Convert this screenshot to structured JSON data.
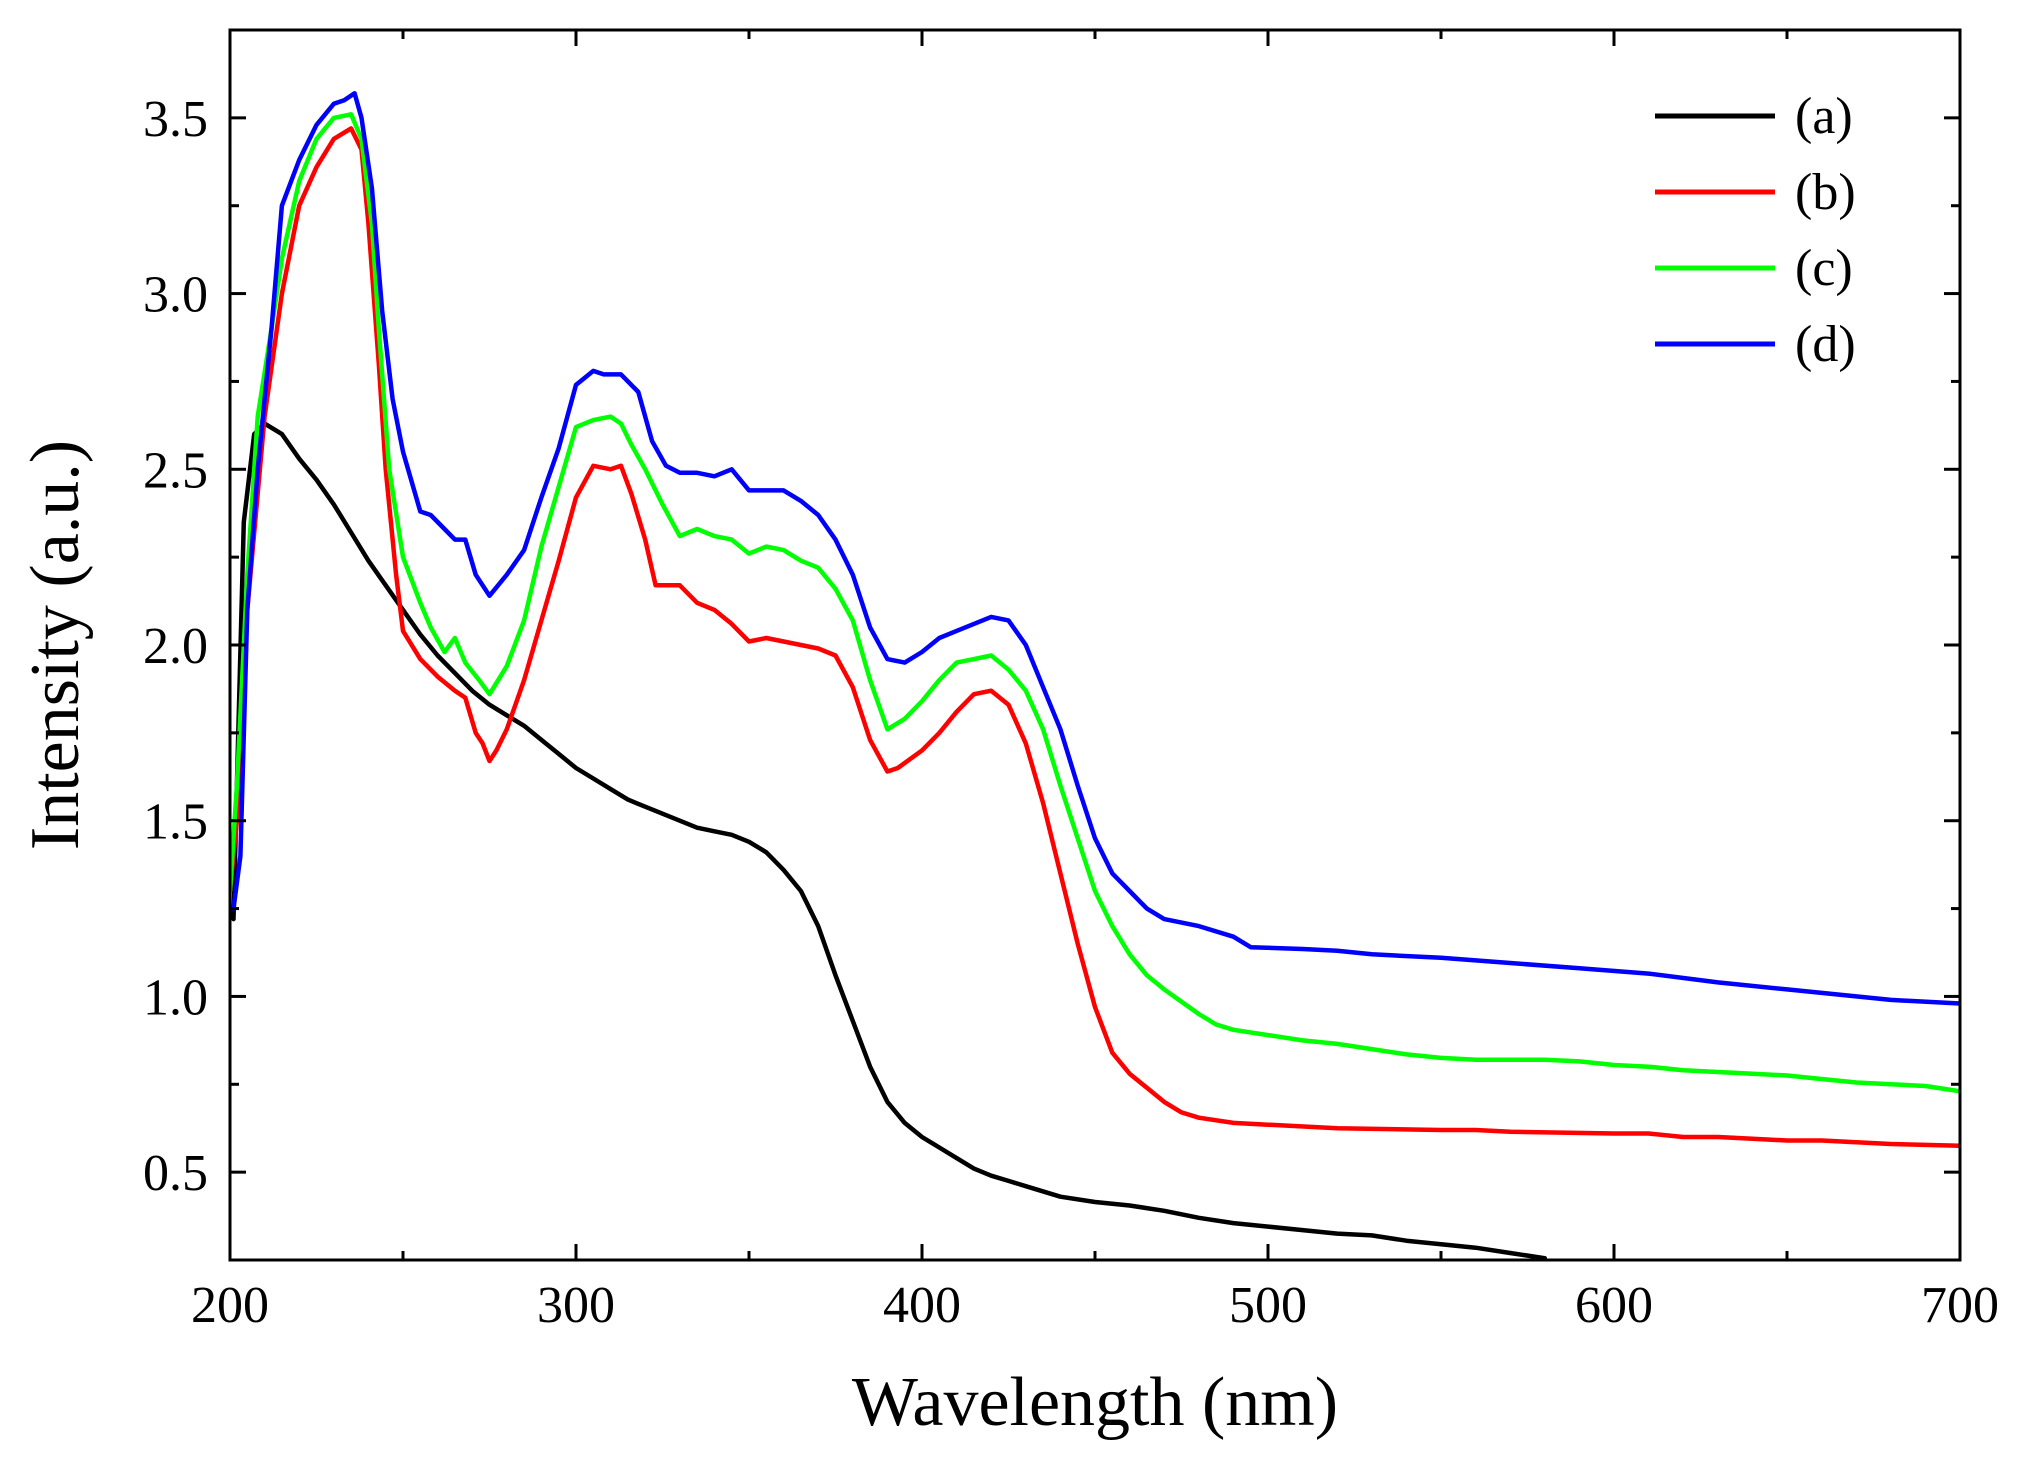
{
  "chart_data": {
    "type": "line",
    "xlabel": "Wavelength (nm)",
    "ylabel": "Intensity (a.u.)",
    "xlim": [
      200,
      700
    ],
    "ylim": [
      0.25,
      3.75
    ],
    "x_ticks": [
      200,
      300,
      400,
      500,
      600,
      700
    ],
    "x_tick_labels": [
      "200",
      "300",
      "400",
      "500",
      "600",
      "700"
    ],
    "y_ticks": [
      0.5,
      1.0,
      1.5,
      2.0,
      2.5,
      3.0,
      3.5
    ],
    "y_tick_labels": [
      "0.5",
      "1.0",
      "1.5",
      "2.0",
      "2.5",
      "3.0",
      "3.5"
    ],
    "legend_position": "top-right",
    "series": [
      {
        "name": "(a)",
        "color": "#000000",
        "points": [
          [
            200,
            1.25
          ],
          [
            201,
            1.22
          ],
          [
            202,
            1.6
          ],
          [
            204,
            2.35
          ],
          [
            207,
            2.6
          ],
          [
            210,
            2.63
          ],
          [
            215,
            2.6
          ],
          [
            220,
            2.53
          ],
          [
            225,
            2.47
          ],
          [
            230,
            2.4
          ],
          [
            235,
            2.32
          ],
          [
            240,
            2.24
          ],
          [
            245,
            2.17
          ],
          [
            250,
            2.1
          ],
          [
            255,
            2.03
          ],
          [
            260,
            1.97
          ],
          [
            265,
            1.92
          ],
          [
            270,
            1.87
          ],
          [
            275,
            1.83
          ],
          [
            280,
            1.8
          ],
          [
            285,
            1.77
          ],
          [
            290,
            1.73
          ],
          [
            295,
            1.69
          ],
          [
            300,
            1.65
          ],
          [
            305,
            1.62
          ],
          [
            310,
            1.59
          ],
          [
            315,
            1.56
          ],
          [
            320,
            1.54
          ],
          [
            325,
            1.52
          ],
          [
            330,
            1.5
          ],
          [
            335,
            1.48
          ],
          [
            340,
            1.47
          ],
          [
            345,
            1.46
          ],
          [
            350,
            1.44
          ],
          [
            355,
            1.41
          ],
          [
            360,
            1.36
          ],
          [
            365,
            1.3
          ],
          [
            370,
            1.2
          ],
          [
            375,
            1.06
          ],
          [
            380,
            0.93
          ],
          [
            385,
            0.8
          ],
          [
            390,
            0.7
          ],
          [
            395,
            0.64
          ],
          [
            400,
            0.6
          ],
          [
            405,
            0.57
          ],
          [
            410,
            0.54
          ],
          [
            415,
            0.51
          ],
          [
            420,
            0.49
          ],
          [
            425,
            0.475
          ],
          [
            430,
            0.46
          ],
          [
            440,
            0.43
          ],
          [
            450,
            0.415
          ],
          [
            460,
            0.405
          ],
          [
            470,
            0.39
          ],
          [
            480,
            0.37
          ],
          [
            490,
            0.355
          ],
          [
            500,
            0.345
          ],
          [
            510,
            0.335
          ],
          [
            520,
            0.325
          ],
          [
            530,
            0.32
          ],
          [
            540,
            0.305
          ],
          [
            550,
            0.295
          ],
          [
            560,
            0.285
          ],
          [
            570,
            0.27
          ],
          [
            580,
            0.255
          ]
        ]
      },
      {
        "name": "(b)",
        "color": "#ff0000",
        "points": [
          [
            200,
            1.3
          ],
          [
            202,
            1.5
          ],
          [
            205,
            2.1
          ],
          [
            210,
            2.65
          ],
          [
            215,
            3.0
          ],
          [
            220,
            3.25
          ],
          [
            225,
            3.36
          ],
          [
            230,
            3.44
          ],
          [
            235,
            3.47
          ],
          [
            238,
            3.41
          ],
          [
            240,
            3.2
          ],
          [
            243,
            2.8
          ],
          [
            245,
            2.5
          ],
          [
            248,
            2.2
          ],
          [
            250,
            2.04
          ],
          [
            255,
            1.96
          ],
          [
            260,
            1.91
          ],
          [
            265,
            1.87
          ],
          [
            268,
            1.85
          ],
          [
            271,
            1.75
          ],
          [
            273,
            1.72
          ],
          [
            275,
            1.67
          ],
          [
            277,
            1.7
          ],
          [
            280,
            1.76
          ],
          [
            285,
            1.9
          ],
          [
            290,
            2.07
          ],
          [
            295,
            2.24
          ],
          [
            300,
            2.42
          ],
          [
            305,
            2.51
          ],
          [
            310,
            2.5
          ],
          [
            313,
            2.51
          ],
          [
            316,
            2.43
          ],
          [
            320,
            2.3
          ],
          [
            323,
            2.17
          ],
          [
            330,
            2.17
          ],
          [
            335,
            2.12
          ],
          [
            340,
            2.1
          ],
          [
            345,
            2.06
          ],
          [
            350,
            2.01
          ],
          [
            355,
            2.02
          ],
          [
            360,
            2.01
          ],
          [
            365,
            2.0
          ],
          [
            370,
            1.99
          ],
          [
            375,
            1.97
          ],
          [
            380,
            1.88
          ],
          [
            385,
            1.73
          ],
          [
            390,
            1.64
          ],
          [
            393,
            1.65
          ],
          [
            400,
            1.7
          ],
          [
            405,
            1.75
          ],
          [
            410,
            1.81
          ],
          [
            415,
            1.86
          ],
          [
            420,
            1.87
          ],
          [
            425,
            1.83
          ],
          [
            430,
            1.72
          ],
          [
            435,
            1.55
          ],
          [
            440,
            1.35
          ],
          [
            445,
            1.15
          ],
          [
            450,
            0.97
          ],
          [
            455,
            0.84
          ],
          [
            460,
            0.78
          ],
          [
            465,
            0.74
          ],
          [
            470,
            0.7
          ],
          [
            475,
            0.67
          ],
          [
            480,
            0.655
          ],
          [
            490,
            0.64
          ],
          [
            500,
            0.635
          ],
          [
            520,
            0.625
          ],
          [
            550,
            0.62
          ],
          [
            560,
            0.62
          ],
          [
            570,
            0.615
          ],
          [
            600,
            0.61
          ],
          [
            610,
            0.61
          ],
          [
            620,
            0.6
          ],
          [
            630,
            0.6
          ],
          [
            640,
            0.595
          ],
          [
            650,
            0.59
          ],
          [
            660,
            0.59
          ],
          [
            670,
            0.585
          ],
          [
            680,
            0.58
          ],
          [
            700,
            0.575
          ]
        ]
      },
      {
        "name": "(c)",
        "color": "#00ff00",
        "points": [
          [
            200,
            1.3
          ],
          [
            202,
            1.6
          ],
          [
            205,
            2.2
          ],
          [
            208,
            2.65
          ],
          [
            212,
            2.9
          ],
          [
            215,
            3.1
          ],
          [
            220,
            3.32
          ],
          [
            225,
            3.44
          ],
          [
            230,
            3.5
          ],
          [
            235,
            3.51
          ],
          [
            238,
            3.44
          ],
          [
            241,
            3.2
          ],
          [
            243,
            2.9
          ],
          [
            246,
            2.5
          ],
          [
            250,
            2.25
          ],
          [
            255,
            2.12
          ],
          [
            258,
            2.05
          ],
          [
            262,
            1.98
          ],
          [
            265,
            2.02
          ],
          [
            268,
            1.95
          ],
          [
            272,
            1.9
          ],
          [
            275,
            1.86
          ],
          [
            280,
            1.94
          ],
          [
            285,
            2.07
          ],
          [
            290,
            2.28
          ],
          [
            295,
            2.45
          ],
          [
            300,
            2.62
          ],
          [
            305,
            2.64
          ],
          [
            310,
            2.65
          ],
          [
            313,
            2.63
          ],
          [
            316,
            2.57
          ],
          [
            320,
            2.5
          ],
          [
            325,
            2.4
          ],
          [
            330,
            2.31
          ],
          [
            335,
            2.33
          ],
          [
            340,
            2.31
          ],
          [
            345,
            2.3
          ],
          [
            350,
            2.26
          ],
          [
            355,
            2.28
          ],
          [
            360,
            2.27
          ],
          [
            365,
            2.24
          ],
          [
            370,
            2.22
          ],
          [
            375,
            2.16
          ],
          [
            380,
            2.07
          ],
          [
            385,
            1.9
          ],
          [
            390,
            1.76
          ],
          [
            395,
            1.79
          ],
          [
            400,
            1.84
          ],
          [
            405,
            1.9
          ],
          [
            410,
            1.95
          ],
          [
            415,
            1.96
          ],
          [
            420,
            1.97
          ],
          [
            425,
            1.93
          ],
          [
            430,
            1.87
          ],
          [
            435,
            1.76
          ],
          [
            440,
            1.6
          ],
          [
            445,
            1.45
          ],
          [
            450,
            1.3
          ],
          [
            455,
            1.2
          ],
          [
            460,
            1.12
          ],
          [
            465,
            1.06
          ],
          [
            470,
            1.02
          ],
          [
            480,
            0.95
          ],
          [
            485,
            0.92
          ],
          [
            490,
            0.905
          ],
          [
            500,
            0.89
          ],
          [
            510,
            0.875
          ],
          [
            520,
            0.865
          ],
          [
            530,
            0.85
          ],
          [
            540,
            0.835
          ],
          [
            550,
            0.825
          ],
          [
            560,
            0.82
          ],
          [
            570,
            0.82
          ],
          [
            580,
            0.82
          ],
          [
            590,
            0.815
          ],
          [
            600,
            0.805
          ],
          [
            610,
            0.8
          ],
          [
            620,
            0.79
          ],
          [
            630,
            0.785
          ],
          [
            640,
            0.78
          ],
          [
            650,
            0.775
          ],
          [
            660,
            0.765
          ],
          [
            670,
            0.755
          ],
          [
            680,
            0.75
          ],
          [
            690,
            0.745
          ],
          [
            700,
            0.73
          ]
        ]
      },
      {
        "name": "(d)",
        "color": "#0000ff",
        "points": [
          [
            201,
            1.25
          ],
          [
            203,
            1.4
          ],
          [
            205,
            2.1
          ],
          [
            208,
            2.5
          ],
          [
            212,
            2.9
          ],
          [
            215,
            3.25
          ],
          [
            220,
            3.38
          ],
          [
            225,
            3.48
          ],
          [
            230,
            3.54
          ],
          [
            233,
            3.55
          ],
          [
            236,
            3.57
          ],
          [
            238,
            3.5
          ],
          [
            241,
            3.3
          ],
          [
            244,
            2.95
          ],
          [
            247,
            2.7
          ],
          [
            250,
            2.55
          ],
          [
            255,
            2.38
          ],
          [
            258,
            2.37
          ],
          [
            262,
            2.33
          ],
          [
            265,
            2.3
          ],
          [
            268,
            2.3
          ],
          [
            271,
            2.2
          ],
          [
            275,
            2.14
          ],
          [
            280,
            2.2
          ],
          [
            285,
            2.27
          ],
          [
            290,
            2.42
          ],
          [
            295,
            2.56
          ],
          [
            300,
            2.74
          ],
          [
            305,
            2.78
          ],
          [
            308,
            2.77
          ],
          [
            313,
            2.77
          ],
          [
            318,
            2.72
          ],
          [
            322,
            2.58
          ],
          [
            326,
            2.51
          ],
          [
            330,
            2.49
          ],
          [
            335,
            2.49
          ],
          [
            340,
            2.48
          ],
          [
            345,
            2.5
          ],
          [
            350,
            2.44
          ],
          [
            355,
            2.44
          ],
          [
            360,
            2.44
          ],
          [
            365,
            2.41
          ],
          [
            370,
            2.37
          ],
          [
            375,
            2.3
          ],
          [
            380,
            2.2
          ],
          [
            385,
            2.05
          ],
          [
            390,
            1.96
          ],
          [
            395,
            1.95
          ],
          [
            400,
            1.98
          ],
          [
            405,
            2.02
          ],
          [
            410,
            2.04
          ],
          [
            415,
            2.06
          ],
          [
            420,
            2.08
          ],
          [
            425,
            2.07
          ],
          [
            430,
            2.0
          ],
          [
            435,
            1.88
          ],
          [
            440,
            1.76
          ],
          [
            445,
            1.6
          ],
          [
            450,
            1.45
          ],
          [
            455,
            1.35
          ],
          [
            460,
            1.3
          ],
          [
            465,
            1.25
          ],
          [
            470,
            1.22
          ],
          [
            480,
            1.2
          ],
          [
            490,
            1.17
          ],
          [
            495,
            1.14
          ],
          [
            510,
            1.135
          ],
          [
            520,
            1.13
          ],
          [
            530,
            1.12
          ],
          [
            550,
            1.11
          ],
          [
            570,
            1.095
          ],
          [
            590,
            1.08
          ],
          [
            610,
            1.065
          ],
          [
            630,
            1.04
          ],
          [
            650,
            1.02
          ],
          [
            670,
            1.0
          ],
          [
            680,
            0.99
          ],
          [
            700,
            0.98
          ]
        ]
      }
    ]
  }
}
